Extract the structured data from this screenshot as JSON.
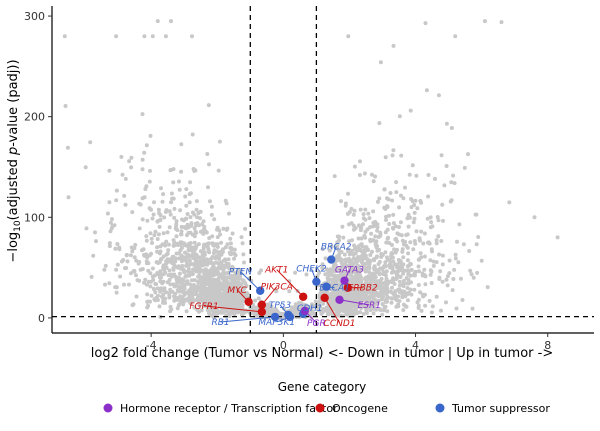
{
  "chart_data": {
    "type": "scatter",
    "xlabel": "log2 fold change (Tumor vs Normal)  <- Down in tumor | Up in tumor ->",
    "ylabel": "-log10(adjusted p-value (padj))",
    "xlim": [
      -7,
      9.4
    ],
    "ylim": [
      -15,
      310
    ],
    "x_ticks": [
      -4,
      0,
      4,
      8
    ],
    "y_ticks": [
      0,
      100,
      200,
      300
    ],
    "thresholds": {
      "log2fc": [
        -1,
        1
      ],
      "neg_log10_padj": 1.3
    },
    "background_color": "#c8c8c8",
    "background_points_count_estimate": 3000,
    "highlighted": [
      {
        "gene": "BRCA2",
        "x": 1.45,
        "y": 58,
        "category": "Tumor suppressor",
        "label_x": 1.6,
        "label_y": 68
      },
      {
        "gene": "GATA3",
        "x": 1.85,
        "y": 37,
        "category": "Hormone receptor / Transcription factor",
        "label_x": 2.0,
        "label_y": 45
      },
      {
        "gene": "CHEK2",
        "x": 1.0,
        "y": 36,
        "category": "Tumor suppressor",
        "label_x": 0.85,
        "label_y": 46
      },
      {
        "gene": "BRCA1",
        "x": 1.3,
        "y": 31,
        "category": "Tumor suppressor",
        "label_x": 1.55,
        "label_y": 27
      },
      {
        "gene": "ERBB2",
        "x": 1.95,
        "y": 30,
        "category": "Oncogene",
        "label_x": 2.4,
        "label_y": 27
      },
      {
        "gene": "ESR1",
        "x": 1.7,
        "y": 18,
        "category": "Hormone receptor / Transcription factor",
        "label_x": 2.6,
        "label_y": 10
      },
      {
        "gene": "CCND1",
        "x": 1.25,
        "y": 20,
        "category": "Oncogene",
        "label_x": 1.7,
        "label_y": -8
      },
      {
        "gene": "AKT1",
        "x": 0.6,
        "y": 21,
        "category": "Oncogene",
        "label_x": -0.2,
        "label_y": 45
      },
      {
        "gene": "PTEN",
        "x": -0.7,
        "y": 27,
        "category": "Tumor suppressor",
        "label_x": -1.3,
        "label_y": 43
      },
      {
        "gene": "PIK3CA",
        "x": -0.65,
        "y": 13,
        "category": "Oncogene",
        "label_x": -0.2,
        "label_y": 28
      },
      {
        "gene": "MYC",
        "x": -1.05,
        "y": 16,
        "category": "Oncogene",
        "label_x": -1.4,
        "label_y": 25
      },
      {
        "gene": "FGFR1",
        "x": -0.65,
        "y": 6,
        "category": "Oncogene",
        "label_x": -2.4,
        "label_y": 9
      },
      {
        "gene": "TP53",
        "x": 0.15,
        "y": 3,
        "category": "Tumor suppressor",
        "label_x": -0.1,
        "label_y": 10
      },
      {
        "gene": "CDH1",
        "x": 0.6,
        "y": 4,
        "category": "Tumor suppressor",
        "label_x": 0.8,
        "label_y": 7
      },
      {
        "gene": "PGR",
        "x": 0.65,
        "y": 7,
        "category": "Hormone receptor / Transcription factor",
        "label_x": 1.0,
        "label_y": -8
      },
      {
        "gene": "RB1",
        "x": -0.25,
        "y": 1,
        "category": "Tumor suppressor",
        "label_x": -1.9,
        "label_y": -7
      },
      {
        "gene": "MAP3K1",
        "x": 0.2,
        "y": 1,
        "category": "Tumor suppressor",
        "label_x": -0.2,
        "label_y": -7
      }
    ],
    "legend": {
      "title": "Gene category",
      "placement": "bottom",
      "entries": [
        {
          "label": "Hormone receptor / Transcription factor",
          "color": "#8b2fc9"
        },
        {
          "label": "Oncogene",
          "color": "#cc1111"
        },
        {
          "label": "Tumor suppressor",
          "color": "#3a66cc"
        }
      ]
    },
    "colors": {
      "Hormone receptor / Transcription factor": "#8b2fc9",
      "Oncogene": "#cc1111",
      "Tumor suppressor": "#3a66cc",
      "label_Hormone receptor / Transcription factor": "#8b2fc9",
      "label_Oncogene": "#cc1111",
      "label_Tumor suppressor": "#3a66cc"
    }
  }
}
